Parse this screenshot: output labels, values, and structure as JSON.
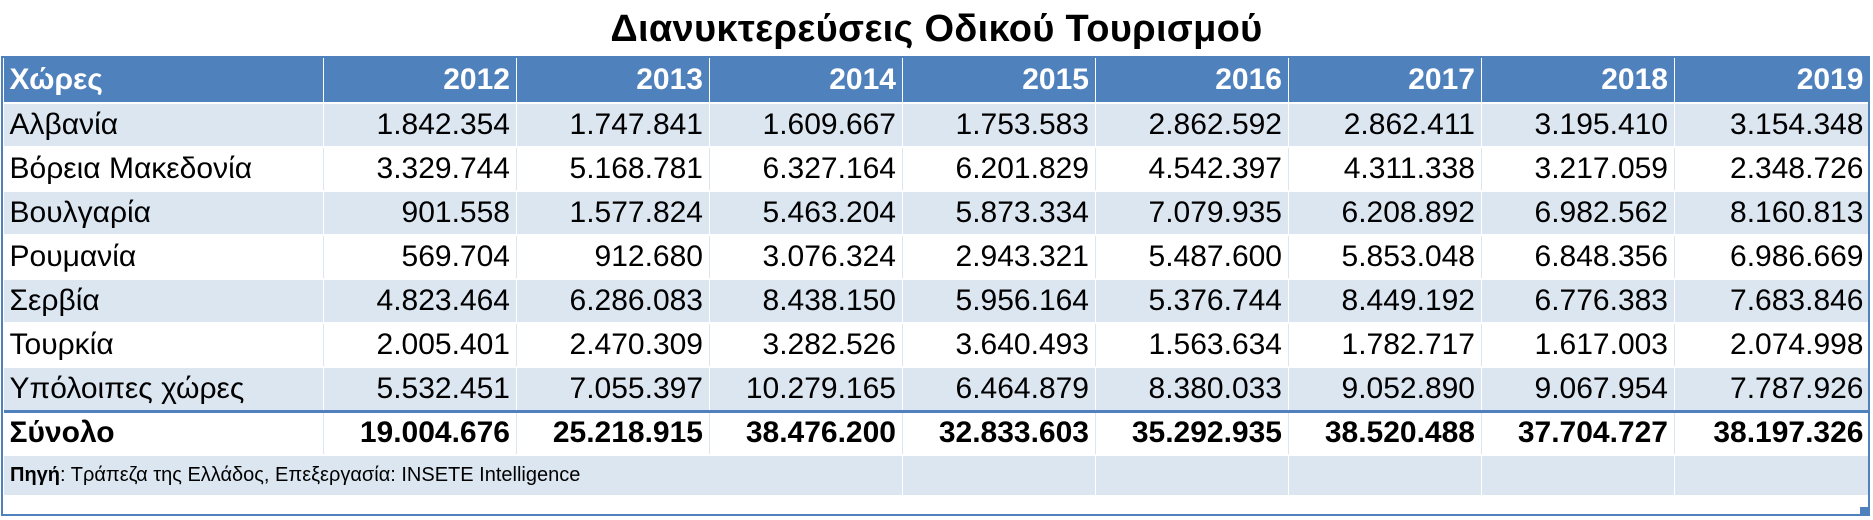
{
  "title": "Διανυκτερεύσεις Οδικού Τουρισμού",
  "table": {
    "header_label": "Χώρες",
    "years": [
      "2012",
      "2013",
      "2014",
      "2015",
      "2016",
      "2017",
      "2018",
      "2019"
    ],
    "rows": [
      {
        "country": "Αλβανία",
        "values": [
          "1.842.354",
          "1.747.841",
          "1.609.667",
          "1.753.583",
          "2.862.592",
          "2.862.411",
          "3.195.410",
          "3.154.348"
        ]
      },
      {
        "country": "Βόρεια Μακεδονία",
        "values": [
          "3.329.744",
          "5.168.781",
          "6.327.164",
          "6.201.829",
          "4.542.397",
          "4.311.338",
          "3.217.059",
          "2.348.726"
        ]
      },
      {
        "country": "Βουλγαρία",
        "values": [
          "901.558",
          "1.577.824",
          "5.463.204",
          "5.873.334",
          "7.079.935",
          "6.208.892",
          "6.982.562",
          "8.160.813"
        ]
      },
      {
        "country": "Ρουμανία",
        "values": [
          "569.704",
          "912.680",
          "3.076.324",
          "2.943.321",
          "5.487.600",
          "5.853.048",
          "6.848.356",
          "6.986.669"
        ]
      },
      {
        "country": "Σερβία",
        "values": [
          "4.823.464",
          "6.286.083",
          "8.438.150",
          "5.956.164",
          "5.376.744",
          "8.449.192",
          "6.776.383",
          "7.683.846"
        ]
      },
      {
        "country": "Τουρκία",
        "values": [
          "2.005.401",
          "2.470.309",
          "3.282.526",
          "3.640.493",
          "1.563.634",
          "1.782.717",
          "1.617.003",
          "2.074.998"
        ]
      },
      {
        "country": "Υπόλοιπες χώρες",
        "values": [
          "5.532.451",
          "7.055.397",
          "10.279.165",
          "6.464.879",
          "8.380.033",
          "9.052.890",
          "9.067.954",
          "7.787.926"
        ]
      }
    ],
    "total": {
      "label": "Σύνολο",
      "values": [
        "19.004.676",
        "25.218.915",
        "38.476.200",
        "32.833.603",
        "35.292.935",
        "38.520.488",
        "37.704.727",
        "38.197.326"
      ]
    }
  },
  "source": {
    "label": "Πηγή",
    "text": ": Τράπεζα της Ελλάδος, Επεξεργασία: INSETE Intelligence"
  },
  "colors": {
    "header_bg": "#4f81bd",
    "band_bg": "#dce6f1"
  }
}
